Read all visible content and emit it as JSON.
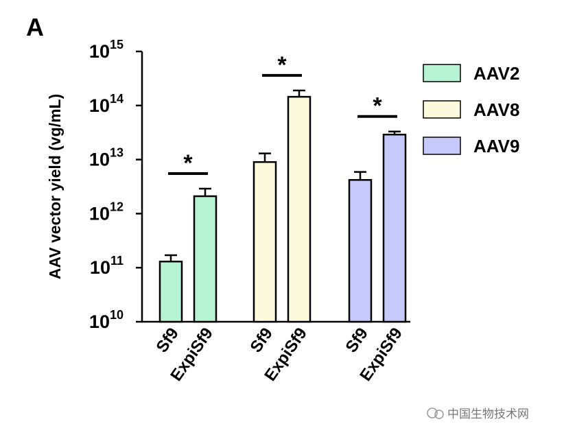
{
  "chart_data": {
    "type": "bar",
    "panel_label": "A",
    "y_label": "AAV vector yield (vg/mL)",
    "log_y": true,
    "ylim": [
      10000000000,
      1000000000000000
    ],
    "yticks": [
      {
        "value": 10000000000,
        "label": "10",
        "exponent": "10"
      },
      {
        "value": 100000000000,
        "label": "10",
        "exponent": "11"
      },
      {
        "value": 1000000000000,
        "label": "10",
        "exponent": "12"
      },
      {
        "value": 10000000000000,
        "label": "10",
        "exponent": "13"
      },
      {
        "value": 100000000000000,
        "label": "10",
        "exponent": "14"
      },
      {
        "value": 1000000000000000,
        "label": "10",
        "exponent": "15"
      }
    ],
    "categories": [
      "Sf9",
      "ExpiSf9"
    ],
    "series": [
      {
        "name": "AAV2",
        "color": "#b5f3d2",
        "values": [
          130000000000,
          2100000000000
        ],
        "errors": [
          40000000000,
          800000000000
        ],
        "significance": "*"
      },
      {
        "name": "AAV8",
        "color": "#fdf9dc",
        "values": [
          9000000000000,
          145000000000000
        ],
        "errors": [
          4000000000000,
          45000000000000
        ],
        "significance": "*"
      },
      {
        "name": "AAV9",
        "color": "#c5c9fb",
        "values": [
          4200000000000,
          29000000000000
        ],
        "errors": [
          1700000000000,
          4000000000000
        ],
        "significance": "*"
      }
    ],
    "watermark": "中国生物技术网"
  }
}
